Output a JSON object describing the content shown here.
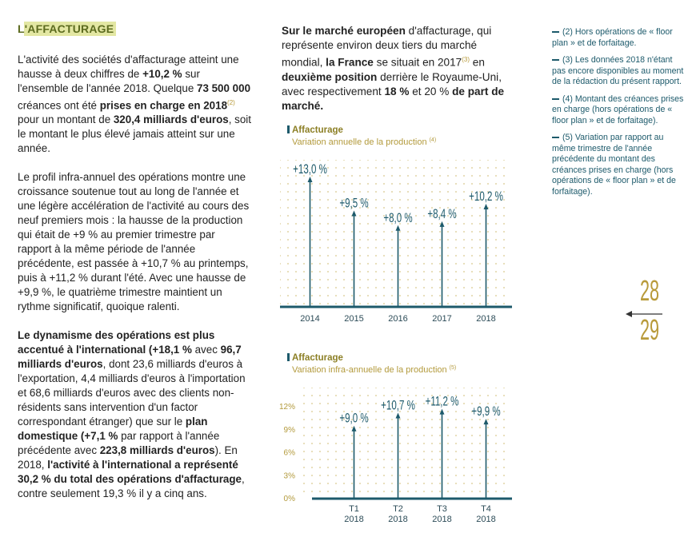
{
  "heading": "L'AFFACTURAGE",
  "left_paragraphs": [
    [
      {
        "text": "L'activité des sociétés d'affacturage atteint une hausse à deux chiffres de "
      },
      {
        "text": "+10,2 %",
        "bold": true
      },
      {
        "text": " sur l'ensemble de l'année 2018. Quelque "
      },
      {
        "text": "73 500 000",
        "bold": true
      },
      {
        "text": " créances ont été "
      },
      {
        "text": "prises en charge en 2018",
        "bold": true
      },
      {
        "text": "(2)",
        "sup": true
      },
      {
        "text": " pour un montant de "
      },
      {
        "text": "320,4 milliards d'euros",
        "bold": true
      },
      {
        "text": ", soit le montant le plus élevé jamais atteint sur une année."
      }
    ],
    [
      {
        "text": "Le profil infra-annuel des opérations montre une croissance soutenue tout au long de l'année et une légère accélération de l'activité au cours des neuf premiers mois : la hausse de la production qui était de +9 % au premier trimestre par rapport à la même période de l'année précédente, est passée à +10,7 % au printemps, puis à +11,2 % durant l'été. Avec une hausse de +9,9 %, le quatrième trimestre maintient un rythme significatif, quoique ralenti."
      }
    ],
    [
      {
        "text": "Le dynamisme des opérations est plus accentué à l'international (+18,1 %",
        "bold": true
      },
      {
        "text": " avec "
      },
      {
        "text": "96,7 milliards d'euros",
        "bold": true
      },
      {
        "text": ", dont 23,6 milliards d'euros à l'exportation, 4,4 milliards d'euros à l'importation et 68,6 milliards d'euros avec des clients non-résidents sans intervention d'un factor correspondant étranger) que sur le "
      },
      {
        "text": "plan domestique (+7,1 %",
        "bold": true
      },
      {
        "text": " par rapport à l'année précédente avec "
      },
      {
        "text": "223,8 milliards d'euros",
        "bold": true
      },
      {
        "text": "). En 2018, "
      },
      {
        "text": "l'activité à l'international a représenté 30,2 % du total des opérations d'affacturage",
        "bold": true
      },
      {
        "text": ", contre seulement 19,3 % il y a cinq ans."
      }
    ]
  ],
  "middle_paragraph": [
    {
      "text": "Sur le marché européen",
      "bold": true
    },
    {
      "text": " d'affacturage, qui représente environ deux tiers du marché mondial, "
    },
    {
      "text": "la France",
      "bold": true
    },
    {
      "text": " se situait en 2017"
    },
    {
      "text": "(3)",
      "sup": true
    },
    {
      "text": " en "
    },
    {
      "text": "deuxième position",
      "bold": true
    },
    {
      "text": " derrière le Royaume-Uni, avec respectivement "
    },
    {
      "text": "18 %",
      "bold": true
    },
    {
      "text": " et 20 % "
    },
    {
      "text": "de part de marché.",
      "bold": true
    }
  ],
  "notes": [
    "(2) Hors opérations de « floor plan » et de forfaitage.",
    "(3) Les données 2018 n'étant pas encore disponibles au moment de la rédaction du présent rapport.",
    "(4) Montant des créances prises en charge (hors opérations de « floor plan » et de forfaitage).",
    "(5) Variation par rapport au même trimestre de l'année précédente du montant des créances prises en charge (hors opérations de « floor plan » et de forfaitage)."
  ],
  "page_numbers": [
    "28",
    "29"
  ],
  "chart_data": [
    {
      "type": "stem",
      "title": "Affacturage",
      "subtitle": "Variation annuelle de la production",
      "subtitle_note": "(4)",
      "categories": [
        "2014",
        "2015",
        "2016",
        "2017",
        "2018"
      ],
      "values": [
        13.0,
        9.5,
        8.0,
        8.4,
        10.2
      ],
      "value_labels": [
        "+13,0 %",
        "+9,5 %",
        "+8,0 %",
        "+8,4 %",
        "+10,2 %"
      ],
      "color": "#1d5a6b"
    },
    {
      "type": "stem",
      "title": "Affacturage",
      "subtitle": "Variation infra-annuelle de la production",
      "subtitle_note": "(5)",
      "categories": [
        "T1 2018",
        "T2 2018",
        "T3 2018",
        "T4 2018"
      ],
      "values": [
        9.0,
        10.7,
        11.2,
        9.9
      ],
      "value_labels": [
        "+9,0 %",
        "+10,7 %",
        "+11,2 %",
        "+9,9 %"
      ],
      "ylim": [
        0,
        12
      ],
      "yticks": [
        {
          "value": 0,
          "label": "0%"
        },
        {
          "value": 3,
          "label": "3%"
        },
        {
          "value": 6,
          "label": "6%"
        },
        {
          "value": 9,
          "label": "9%"
        },
        {
          "value": 12,
          "label": "12%"
        }
      ],
      "color": "#1d5a6b"
    }
  ]
}
